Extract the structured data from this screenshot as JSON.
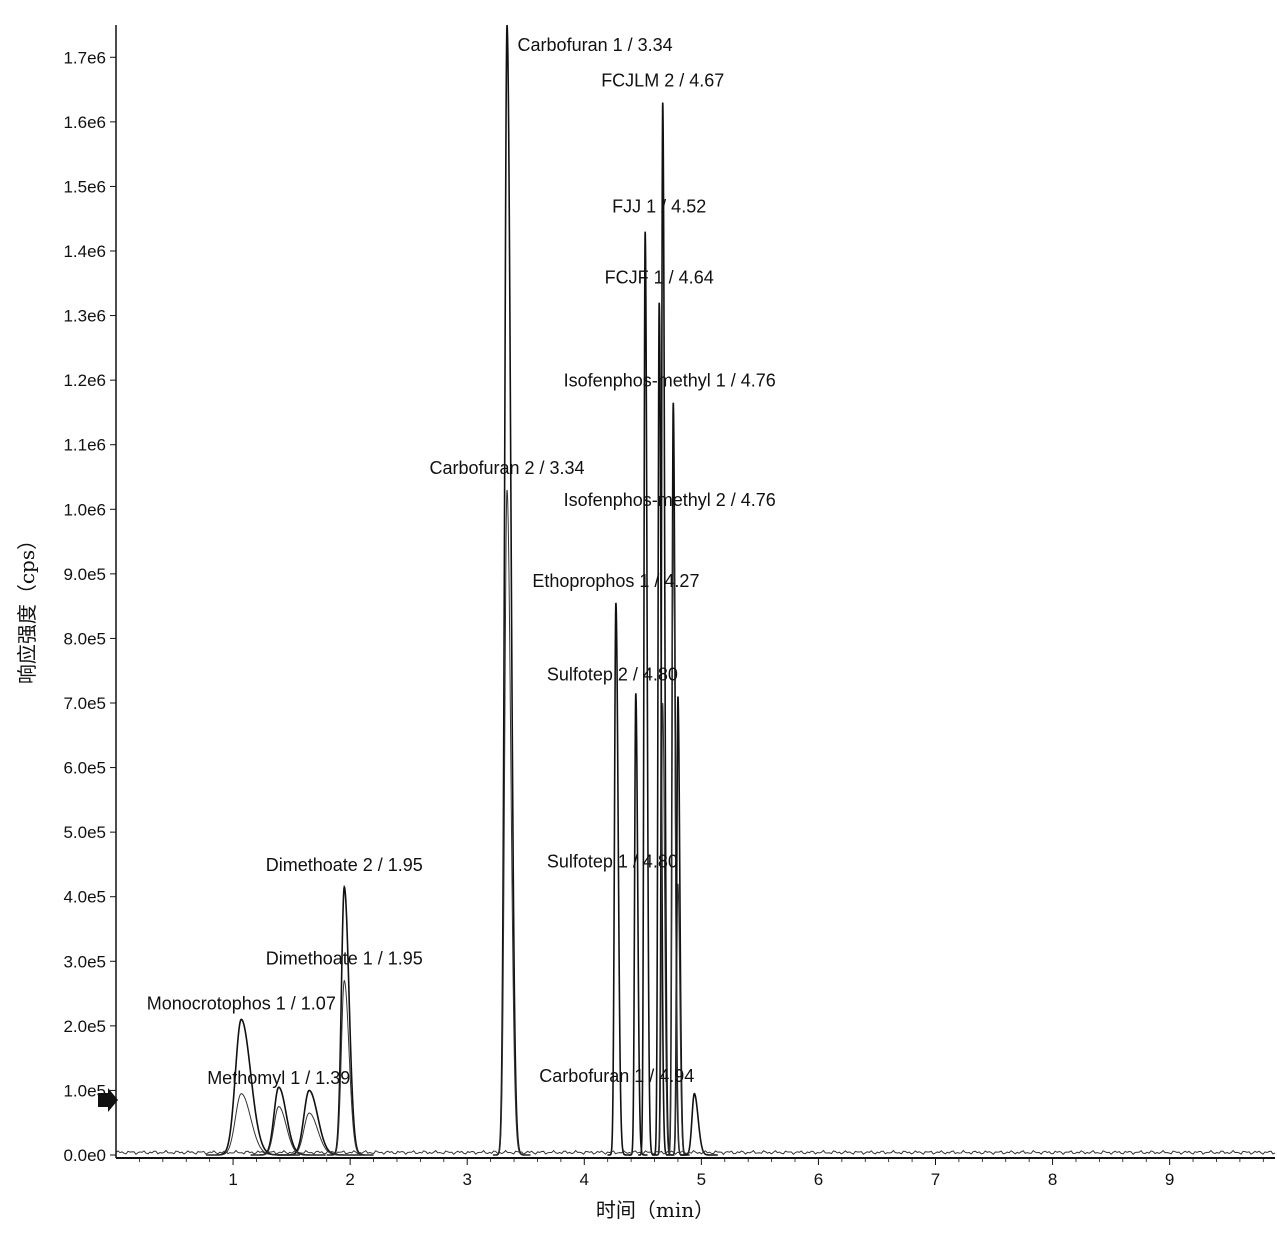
{
  "chart_data": {
    "type": "line",
    "title": "",
    "xlabel": "时间（min）",
    "ylabel": "响应强度（cps）",
    "xlim": [
      0,
      9.9
    ],
    "ylim": [
      0,
      1750000
    ],
    "x_ticks": [
      1,
      2,
      3,
      4,
      5,
      6,
      7,
      8,
      9
    ],
    "x_tick_labels": [
      "1",
      "2",
      "3",
      "4",
      "5",
      "6",
      "7",
      "8",
      "9"
    ],
    "y_ticks": [
      0,
      100000,
      200000,
      300000,
      400000,
      500000,
      600000,
      700000,
      800000,
      900000,
      1000000,
      1100000,
      1200000,
      1300000,
      1400000,
      1500000,
      1600000,
      1700000
    ],
    "y_tick_labels": [
      "0.0e0",
      "1.0e5",
      "2.0e5",
      "3.0e5",
      "4.0e5",
      "5.0e5",
      "6.0e5",
      "7.0e5",
      "8.0e5",
      "9.0e5",
      "1.0e6",
      "1.1e6",
      "1.2e6",
      "1.3e6",
      "1.4e6",
      "1.5e6",
      "1.6e6",
      "1.7e6"
    ],
    "grid": false,
    "legend": "none",
    "series": [
      {
        "rt": 1.07,
        "height": 210000,
        "width": 0.05,
        "style": "main"
      },
      {
        "rt": 1.07,
        "height": 95000,
        "width": 0.05,
        "style": "thin"
      },
      {
        "rt": 1.39,
        "height": 105000,
        "width": 0.04,
        "style": "main"
      },
      {
        "rt": 1.39,
        "height": 75000,
        "width": 0.04,
        "style": "thin"
      },
      {
        "rt": 1.65,
        "height": 100000,
        "width": 0.045,
        "style": "main"
      },
      {
        "rt": 1.65,
        "height": 65000,
        "width": 0.045,
        "style": "thin"
      },
      {
        "rt": 1.95,
        "height": 415000,
        "width": 0.025,
        "style": "main"
      },
      {
        "rt": 1.95,
        "height": 270000,
        "width": 0.025,
        "style": "thin"
      },
      {
        "rt": 3.34,
        "height": 1750000,
        "width": 0.02,
        "style": "main"
      },
      {
        "rt": 3.34,
        "height": 1030000,
        "width": 0.02,
        "style": "thin"
      },
      {
        "rt": 4.27,
        "height": 855000,
        "width": 0.012,
        "style": "main"
      },
      {
        "rt": 4.44,
        "height": 715000,
        "width": 0.01,
        "style": "main"
      },
      {
        "rt": 4.52,
        "height": 1430000,
        "width": 0.01,
        "style": "main"
      },
      {
        "rt": 4.64,
        "height": 1320000,
        "width": 0.01,
        "style": "main"
      },
      {
        "rt": 4.67,
        "height": 1630000,
        "width": 0.01,
        "style": "main"
      },
      {
        "rt": 4.67,
        "height": 700000,
        "width": 0.01,
        "style": "thin"
      },
      {
        "rt": 4.76,
        "height": 1165000,
        "width": 0.01,
        "style": "main"
      },
      {
        "rt": 4.76,
        "height": 985000,
        "width": 0.01,
        "style": "thin"
      },
      {
        "rt": 4.8,
        "height": 710000,
        "width": 0.01,
        "style": "main"
      },
      {
        "rt": 4.8,
        "height": 420000,
        "width": 0.01,
        "style": "thin"
      },
      {
        "rt": 4.94,
        "height": 95000,
        "width": 0.02,
        "style": "main"
      }
    ],
    "annotations": [
      {
        "text": "Carbofuran 1 / 3.34",
        "x": 3.43,
        "y": 1710000,
        "anchor": "start"
      },
      {
        "text": "FCJLM 2 / 4.67",
        "x": 4.67,
        "y": 1655000,
        "anchor": "middle"
      },
      {
        "text": "FJJ 1 / 4.52",
        "x": 4.64,
        "y": 1460000,
        "anchor": "middle"
      },
      {
        "text": "FCJF 1 / 4.64",
        "x": 4.64,
        "y": 1350000,
        "anchor": "middle"
      },
      {
        "text": "Isofenphos-methyl 1 / 4.76",
        "x": 4.73,
        "y": 1190000,
        "anchor": "middle"
      },
      {
        "text": "Carbofuran 2 / 3.34",
        "x": 3.34,
        "y": 1055000,
        "anchor": "middle"
      },
      {
        "text": "Isofenphos-methyl 2 / 4.76",
        "x": 4.73,
        "y": 1005000,
        "anchor": "middle"
      },
      {
        "text": "Ethoprophos 1 / 4.27",
        "x": 4.27,
        "y": 880000,
        "anchor": "middle"
      },
      {
        "text": "Sulfotep 2 / 4.80",
        "x": 4.8,
        "y": 735000,
        "anchor": "end"
      },
      {
        "text": "Dimethoate 2 / 1.95",
        "x": 1.95,
        "y": 440000,
        "anchor": "middle"
      },
      {
        "text": "Sulfotep 1 / 4.80",
        "x": 4.8,
        "y": 445000,
        "anchor": "end"
      },
      {
        "text": "Dimethoate 1 / 1.95",
        "x": 1.95,
        "y": 295000,
        "anchor": "middle"
      },
      {
        "text": "Monocrotophos 1 / 1.07",
        "x": 1.07,
        "y": 225000,
        "anchor": "middle"
      },
      {
        "text": "Methomyl 1 / 1.39",
        "x": 1.39,
        "y": 110000,
        "anchor": "middle"
      },
      {
        "text": "Carbofuran 1 / 4.94",
        "x": 4.94,
        "y": 113000,
        "anchor": "end"
      }
    ]
  }
}
